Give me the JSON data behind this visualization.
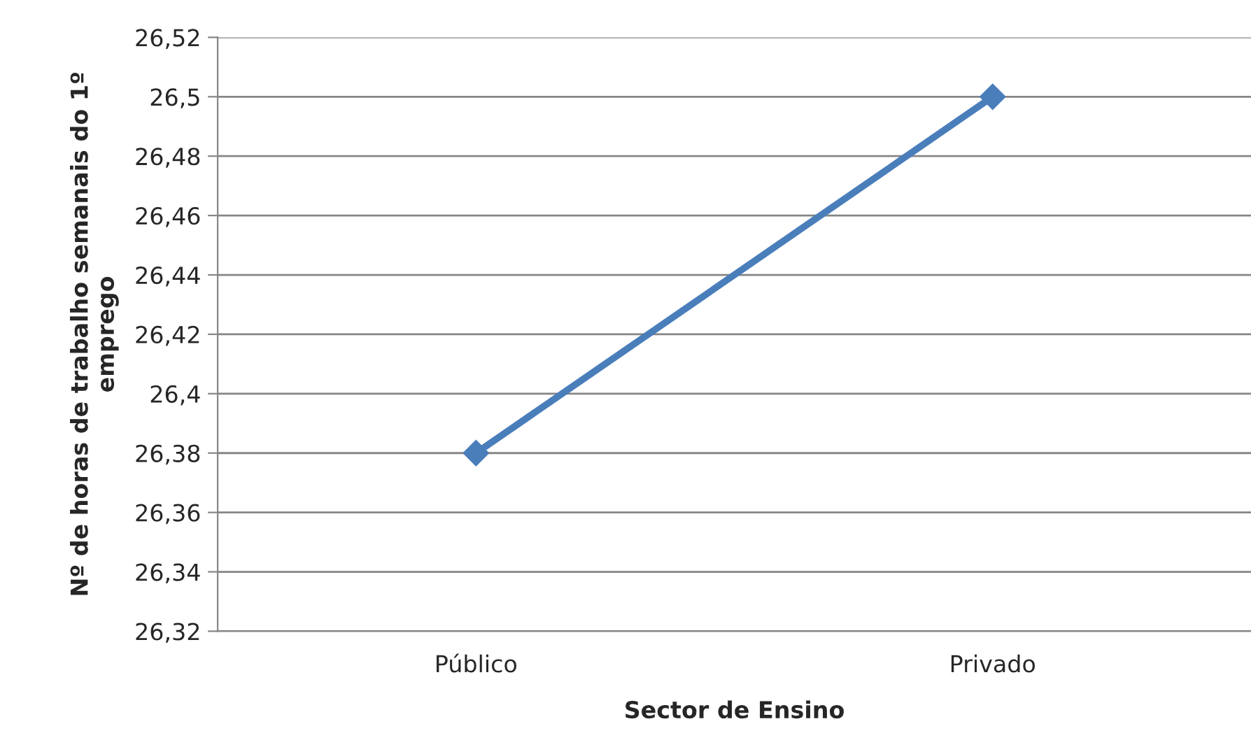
{
  "chart_data": {
    "type": "line",
    "xlabel": "Sector de Ensino",
    "ylabel": "Nº de horas de trabalho semanais do 1º emprego",
    "categories": [
      "Público",
      "Privado"
    ],
    "series": [
      {
        "color": "#4a7ebb",
        "values": [
          26.38,
          26.5
        ]
      }
    ],
    "ylim": [
      26.32,
      26.52
    ],
    "yticks": [
      {
        "value": 26.32,
        "label": "26,32"
      },
      {
        "value": 26.34,
        "label": "26,34"
      },
      {
        "value": 26.36,
        "label": "26,36"
      },
      {
        "value": 26.38,
        "label": "26,38"
      },
      {
        "value": 26.4,
        "label": "26,4"
      },
      {
        "value": 26.42,
        "label": "26,42"
      },
      {
        "value": 26.44,
        "label": "26,44"
      },
      {
        "value": 26.46,
        "label": "26,46"
      },
      {
        "value": 26.48,
        "label": "26,48"
      },
      {
        "value": 26.5,
        "label": "26,5"
      },
      {
        "value": 26.52,
        "label": "26,52"
      }
    ],
    "grid": "y",
    "marker": "diamond",
    "line_style": "solid"
  }
}
